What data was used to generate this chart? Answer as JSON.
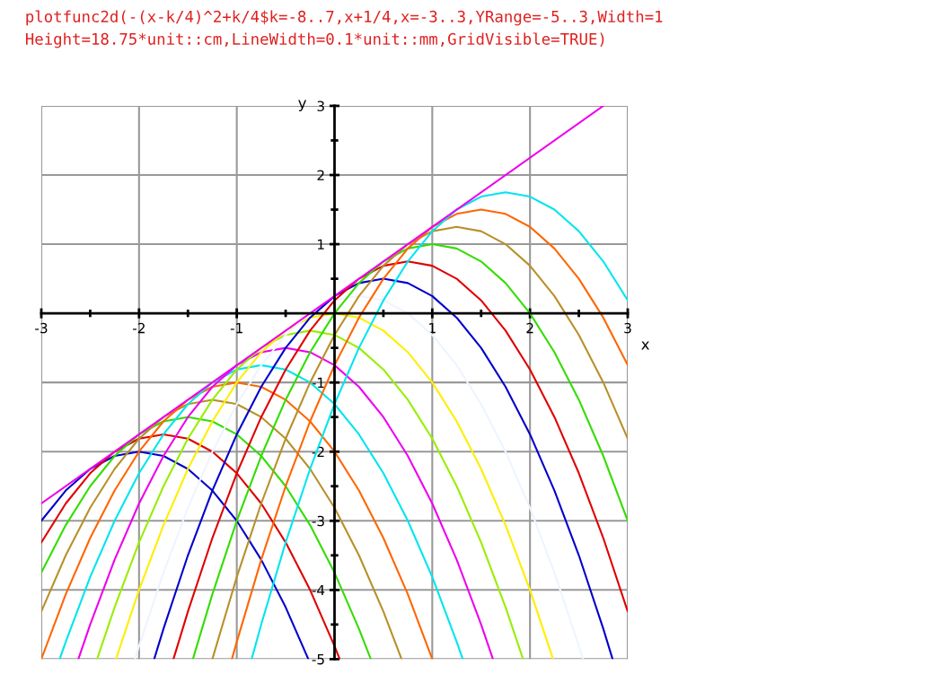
{
  "chart_data": {
    "type": "line",
    "title": "plotfunc2d(-(x-k/4)^2+k/4$k=-8..7,x+1/4,x=-3..3,YRange=-5..3,Width=1\nHeight=18.75*unit::cm,LineWidth=0.1*unit::mm,GridVisible=TRUE)",
    "xlabel": "x",
    "ylabel": "y",
    "xlim": [
      -3,
      3
    ],
    "ylim": [
      -5,
      3
    ],
    "xticks": [
      -3,
      -2,
      -1,
      1,
      2,
      3
    ],
    "yticks": [
      -5,
      -4,
      -3,
      -2,
      -1,
      1,
      2,
      3
    ],
    "grid": true,
    "marker": "none",
    "line_style": "solid",
    "series": [
      {
        "color": "#0000cc",
        "x": [
          -3,
          -2.75,
          -2.5,
          -2.25,
          -2,
          -1.75,
          -1.5,
          -1.25,
          -1,
          -0.75,
          -0.5,
          -0.268
        ],
        "values": [
          -3,
          -2.5625,
          -2.25,
          -2.0625,
          -2,
          -2.0625,
          -2.25,
          -2.5625,
          -3,
          -3.5625,
          -4.25,
          -5
        ]
      },
      {
        "color": "#e00000",
        "x": [
          -3,
          -2.75,
          -2.5,
          -2.25,
          -2,
          -1.75,
          -1.5,
          -1.25,
          -1,
          -0.75,
          -0.5,
          -0.25,
          0,
          0.053
        ],
        "values": [
          -3.3125,
          -2.75,
          -2.3125,
          -2,
          -1.8125,
          -1.75,
          -1.8125,
          -2,
          -2.3125,
          -2.75,
          -3.3125,
          -4,
          -4.8125,
          -5
        ]
      },
      {
        "color": "#33dd00",
        "x": [
          -3,
          -2.75,
          -2.5,
          -2.25,
          -2,
          -1.75,
          -1.5,
          -1.25,
          -1,
          -0.75,
          -0.5,
          -0.25,
          0,
          0.25,
          0.371
        ],
        "values": [
          -3.75,
          -3.0625,
          -2.5,
          -2.0625,
          -1.75,
          -1.5625,
          -1.5,
          -1.5625,
          -1.75,
          -2.0625,
          -2.5,
          -3.0625,
          -3.75,
          -4.5625,
          -5
        ]
      },
      {
        "color": "#b8902a",
        "x": [
          -3,
          -2.75,
          -2.5,
          -2.25,
          -2,
          -1.75,
          -1.5,
          -1.25,
          -1,
          -0.75,
          -0.5,
          -0.25,
          0,
          0.25,
          0.5,
          0.686
        ],
        "values": [
          -4.3125,
          -3.5,
          -2.8125,
          -2.25,
          -1.8125,
          -1.5,
          -1.3125,
          -1.25,
          -1.3125,
          -1.5,
          -1.8125,
          -2.25,
          -2.8125,
          -3.5,
          -4.3125,
          -5
        ]
      },
      {
        "color": "#ff6600",
        "x": [
          -3,
          -2.75,
          -2.5,
          -2.25,
          -2,
          -1.75,
          -1.5,
          -1.25,
          -1,
          -0.75,
          -0.5,
          -0.25,
          0,
          0.25,
          0.5,
          0.75,
          1
        ],
        "values": [
          -5,
          -4.0625,
          -3.25,
          -2.5625,
          -2,
          -1.5625,
          -1.25,
          -1.0625,
          -1,
          -1.0625,
          -1.25,
          -1.5625,
          -2,
          -2.5625,
          -3.25,
          -4.0625,
          -5
        ]
      },
      {
        "color": "#00e5ee",
        "x": [
          -2.812,
          -2.75,
          -2.5,
          -2.25,
          -2,
          -1.75,
          -1.5,
          -1.25,
          -1,
          -0.75,
          -0.5,
          -0.25,
          0,
          0.25,
          0.5,
          0.75,
          1,
          1.25,
          1.312
        ],
        "values": [
          -5,
          -4.75,
          -3.8125,
          -3,
          -2.3125,
          -1.75,
          -1.3125,
          -1,
          -0.8125,
          -0.75,
          -0.8125,
          -1,
          -1.3125,
          -1.75,
          -2.3125,
          -3,
          -3.8125,
          -4.75,
          -5
        ]
      },
      {
        "color": "#ee00ee",
        "x": [
          -2.621,
          -2.5,
          -2.25,
          -2,
          -1.75,
          -1.5,
          -1.25,
          -1,
          -0.75,
          -0.5,
          -0.25,
          0,
          0.25,
          0.5,
          0.75,
          1,
          1.25,
          1.5,
          1.621
        ],
        "values": [
          -5,
          -4.5,
          -3.5625,
          -2.75,
          -2.0625,
          -1.5,
          -1.0625,
          -0.75,
          -0.5625,
          -0.5,
          -0.5625,
          -0.75,
          -1.0625,
          -1.5,
          -2.0625,
          -2.75,
          -3.5625,
          -4.5,
          -5
        ]
      },
      {
        "color": "#99ee00",
        "x": [
          -2.429,
          -2.25,
          -2,
          -1.75,
          -1.5,
          -1.25,
          -1,
          -0.75,
          -0.5,
          -0.25,
          0,
          0.25,
          0.5,
          0.75,
          1,
          1.25,
          1.5,
          1.75,
          1.929
        ],
        "values": [
          -5,
          -4.25,
          -3.3125,
          -2.5,
          -1.8125,
          -1.25,
          -0.8125,
          -0.5,
          -0.3125,
          -0.25,
          -0.3125,
          -0.5,
          -0.8125,
          -1.25,
          -1.8125,
          -2.5,
          -3.3125,
          -4.25,
          -5
        ]
      },
      {
        "color": "#ffee00",
        "x": [
          -2.236,
          -2,
          -1.75,
          -1.5,
          -1.25,
          -1,
          -0.75,
          -0.5,
          -0.25,
          0,
          0.25,
          0.5,
          0.75,
          1,
          1.25,
          1.5,
          1.75,
          2,
          2.236
        ],
        "values": [
          -5,
          -4,
          -3.0625,
          -2.25,
          -1.5625,
          -1,
          -0.5625,
          -0.25,
          -0.0625,
          0,
          -0.0625,
          -0.25,
          -0.5625,
          -1,
          -1.5625,
          -2.25,
          -3.0625,
          -4,
          -5
        ]
      },
      {
        "color": "#eef4ff",
        "x": [
          -2.041,
          -2,
          -1.75,
          -1.5,
          -1.25,
          -1,
          -0.75,
          -0.5,
          -0.25,
          0,
          0.25,
          0.5,
          0.75,
          1,
          1.25,
          1.5,
          1.75,
          2,
          2.25,
          2.5,
          2.541
        ],
        "values": [
          -5,
          -4.8125,
          -3.75,
          -2.8125,
          -2,
          -1.3125,
          -0.75,
          -0.3125,
          0,
          0.1875,
          0.25,
          0.1875,
          0,
          -0.3125,
          -0.75,
          -1.3125,
          -2,
          -2.8125,
          -3.75,
          -4.8125,
          -5
        ]
      },
      {
        "color": "#0000cc",
        "x": [
          -1.845,
          -1.75,
          -1.5,
          -1.25,
          -1,
          -0.75,
          -0.5,
          -0.25,
          0,
          0.25,
          0.5,
          0.75,
          1,
          1.25,
          1.5,
          1.75,
          2,
          2.25,
          2.5,
          2.75,
          2.845
        ],
        "values": [
          -5,
          -4.5625,
          -3.5,
          -2.5625,
          -1.75,
          -1.0625,
          -0.5,
          -0.0625,
          0.25,
          0.4375,
          0.5,
          0.4375,
          0.25,
          -0.0625,
          -0.5,
          -1.0625,
          -1.75,
          -2.5625,
          -3.5,
          -4.5625,
          -5
        ]
      },
      {
        "color": "#e00000",
        "x": [
          -1.648,
          -1.5,
          -1.25,
          -1,
          -0.75,
          -0.5,
          -0.25,
          0,
          0.25,
          0.5,
          0.75,
          1,
          1.25,
          1.5,
          1.75,
          2,
          2.25,
          2.5,
          2.75,
          3
        ],
        "values": [
          -5,
          -4.3125,
          -3.25,
          -2.3125,
          -1.5,
          -0.8125,
          -0.25,
          0.1875,
          0.5,
          0.6875,
          0.75,
          0.6875,
          0.5,
          0.1875,
          -0.25,
          -0.8125,
          -1.5,
          -2.3125,
          -3.25,
          -4.3125
        ]
      },
      {
        "color": "#33dd00",
        "x": [
          -1.449,
          -1.25,
          -1,
          -0.75,
          -0.5,
          -0.25,
          0,
          0.25,
          0.5,
          0.75,
          1,
          1.25,
          1.5,
          1.75,
          2,
          2.25,
          2.5,
          2.75,
          3
        ],
        "values": [
          -5,
          -4.0625,
          -3,
          -2.0625,
          -1.25,
          -0.5625,
          0,
          0.4375,
          0.75,
          0.9375,
          1,
          0.9375,
          0.75,
          0.4375,
          0,
          -0.5625,
          -1.25,
          -2.0625,
          -3
        ]
      },
      {
        "color": "#b8902a",
        "x": [
          -1.25,
          -1,
          -0.75,
          -0.5,
          -0.25,
          0,
          0.25,
          0.5,
          0.75,
          1,
          1.25,
          1.5,
          1.75,
          2,
          2.25,
          2.5,
          2.75,
          3
        ],
        "values": [
          -5,
          -3.8125,
          -2.75,
          -1.8125,
          -1,
          -0.3125,
          0.25,
          0.6875,
          1,
          1.1875,
          1.25,
          1.1875,
          1,
          0.6875,
          0.25,
          -0.3125,
          -1,
          -1.8125
        ]
      },
      {
        "color": "#ff6600",
        "x": [
          -1.05,
          -1,
          -0.75,
          -0.5,
          -0.25,
          0,
          0.25,
          0.5,
          0.75,
          1,
          1.25,
          1.5,
          1.75,
          2,
          2.25,
          2.5,
          2.75,
          3
        ],
        "values": [
          -5,
          -4.75,
          -3.5625,
          -2.5,
          -1.5625,
          -0.75,
          -0.0625,
          0.5,
          0.9375,
          1.25,
          1.4375,
          1.5,
          1.4375,
          1.25,
          0.9375,
          0.5,
          -0.0625,
          -0.75
        ]
      },
      {
        "color": "#00e5ee",
        "x": [
          -0.848,
          -0.75,
          -0.5,
          -0.25,
          0,
          0.25,
          0.5,
          0.75,
          1,
          1.25,
          1.5,
          1.75,
          2,
          2.25,
          2.5,
          2.75,
          3
        ],
        "values": [
          -5,
          -4.5,
          -3.3125,
          -2.25,
          -1.3125,
          -0.5,
          0.1875,
          0.75,
          1.1875,
          1.5,
          1.6875,
          1.75,
          1.6875,
          1.5,
          1.1875,
          0.75,
          0.1875
        ]
      },
      {
        "color": "#ee00ee",
        "x": [
          -3,
          2.75
        ],
        "values": [
          -2.75,
          3
        ]
      }
    ]
  }
}
